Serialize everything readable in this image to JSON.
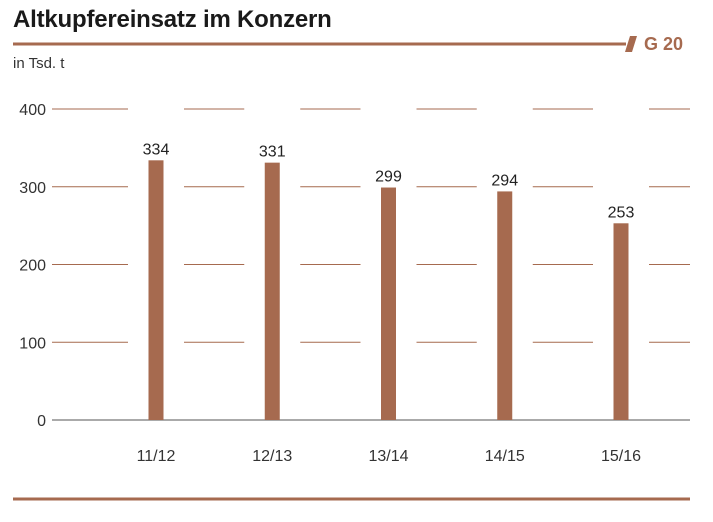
{
  "chart_data": {
    "type": "bar",
    "title": "Altkupfereinsatz im Konzern",
    "subtitle": "in Tsd. t",
    "figure_id": "G 20",
    "categories": [
      "11/12",
      "12/13",
      "13/14",
      "14/15",
      "15/16"
    ],
    "values": [
      334,
      331,
      299,
      294,
      253
    ],
    "data_labels": [
      "334",
      "331",
      "299",
      "294",
      "253"
    ],
    "y_ticks": [
      0,
      100,
      200,
      300,
      400
    ],
    "ylim": [
      0,
      400
    ],
    "grid": true,
    "xlabel": "",
    "ylabel": ""
  },
  "colors": {
    "accent": "#a66a4f",
    "text": "#1a1a1a",
    "grid": "#a66a4f"
  }
}
